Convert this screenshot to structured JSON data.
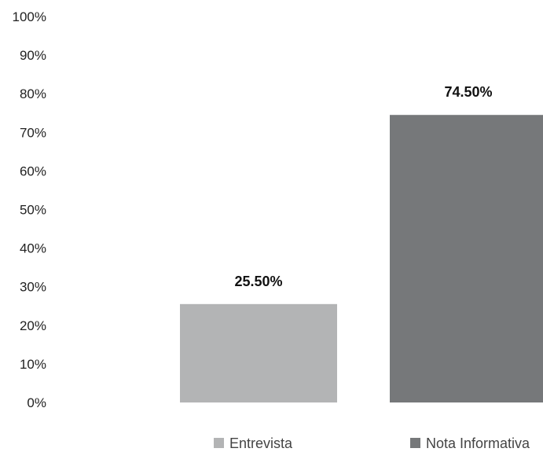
{
  "chart_data": {
    "type": "bar",
    "categories": [
      "Entrevista",
      "Nota Informativa"
    ],
    "values": [
      25.5,
      74.5
    ],
    "value_labels": [
      "25.50%",
      "74.50%"
    ],
    "colors": [
      "#b3b4b5",
      "#76787a"
    ],
    "ylim": [
      0,
      100
    ],
    "yticks": [
      "0%",
      "10%",
      "20%",
      "30%",
      "40%",
      "50%",
      "60%",
      "70%",
      "80%",
      "90%",
      "100%"
    ],
    "legend": [
      "Entrevista",
      "Nota Informativa"
    ],
    "legend_position": "bottom",
    "grid": false,
    "title": "",
    "xlabel": "",
    "ylabel": ""
  }
}
